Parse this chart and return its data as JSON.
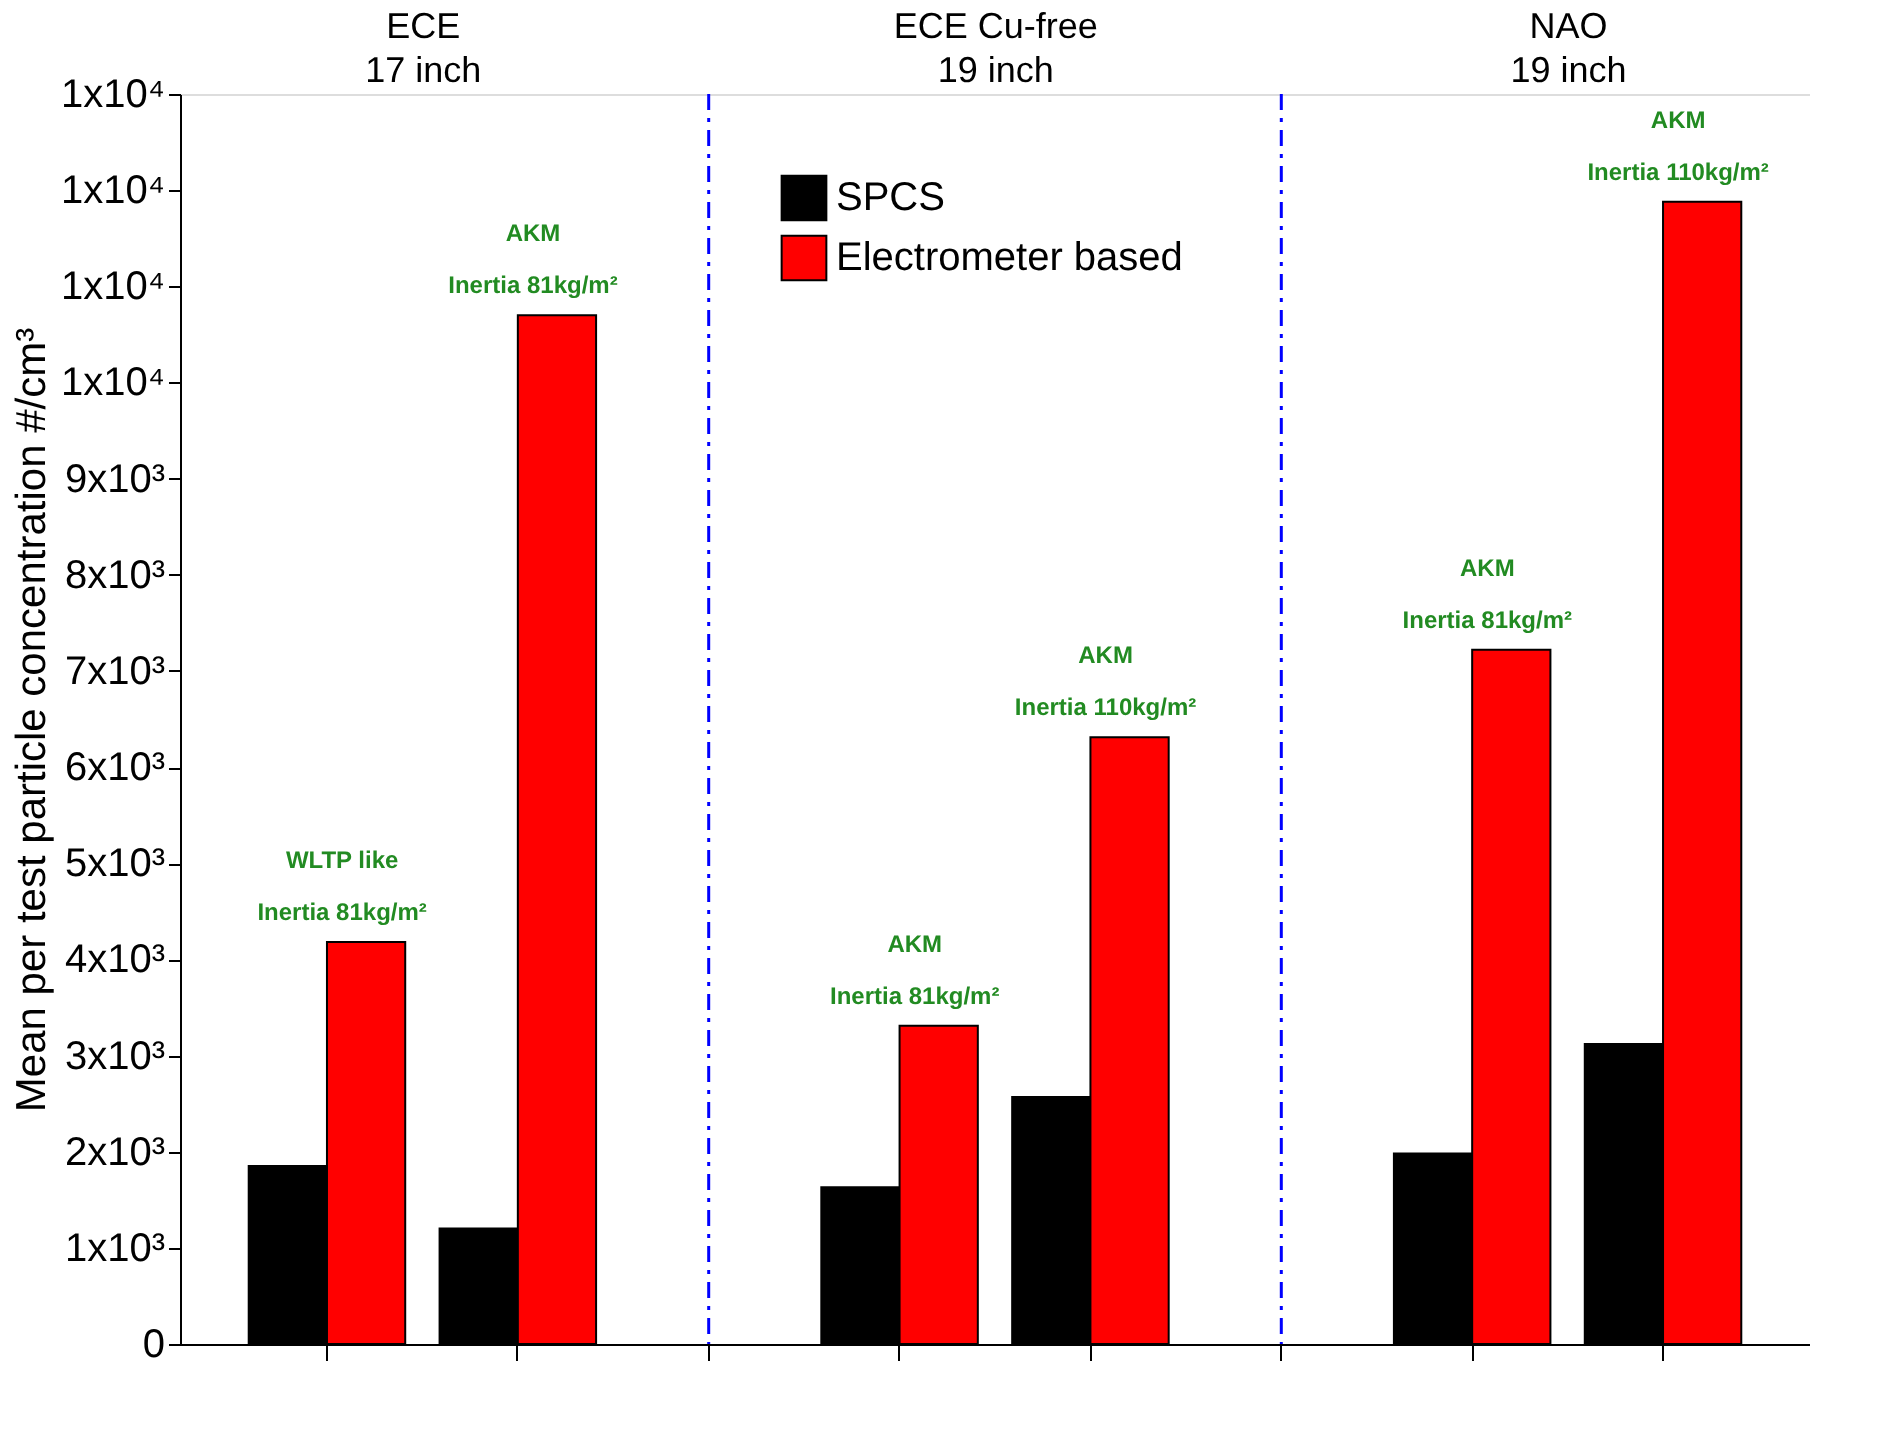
{
  "chart_data": {
    "type": "bar",
    "ylabel": "Mean per test particle concentration #/cm³",
    "categories": [
      null,
      null,
      null,
      null,
      null,
      null
    ],
    "series": [
      {
        "name": "SPCS",
        "color": "#000000",
        "values": [
          1850,
          1200,
          1630,
          2570,
          1980,
          3120
        ]
      },
      {
        "name": "Electrometer based",
        "color": "#ff0000",
        "values": [
          4180,
          10700,
          3310,
          6310,
          7220,
          11880
        ]
      }
    ],
    "ylim": [
      0,
      13000
    ],
    "yticks": [
      0,
      {
        "value": 1000,
        "label": "1x10³"
      },
      {
        "value": 2000,
        "label": "2x10³"
      },
      {
        "value": 3000,
        "label": "3x10³"
      },
      {
        "value": 4000,
        "label": "4x10³"
      },
      {
        "value": 5000,
        "label": "5x10³"
      },
      {
        "value": 6000,
        "label": "6x10³"
      },
      {
        "value": 7000,
        "label": "7x10³"
      },
      {
        "value": 8000,
        "label": "8x10³"
      },
      {
        "value": 9000,
        "label": "9x10³"
      },
      {
        "value": 10000,
        "label": "1x10⁴"
      },
      {
        "value": 11000,
        "label": "1x10⁴"
      },
      {
        "value": 12000,
        "label": "1x10⁴"
      },
      {
        "value": 13000,
        "label": "1x10⁴"
      }
    ],
    "tick_labels": "y",
    "grid": false,
    "legend": "top",
    "annotations": [
      "ECE\n17 inch",
      "ECE Cu-free\n19 inch",
      "NAO\n19 inch",
      "WLTP like\nInertia 81kg/m²",
      "AKM\nInertia 81kg/m²",
      "AKM\nInertia 81kg/m²",
      "AKM\nInertia 110kg/m²",
      "AKM\nInertia 81kg/m²",
      "AKM\nInertia 110kg/m²"
    ]
  }
}
